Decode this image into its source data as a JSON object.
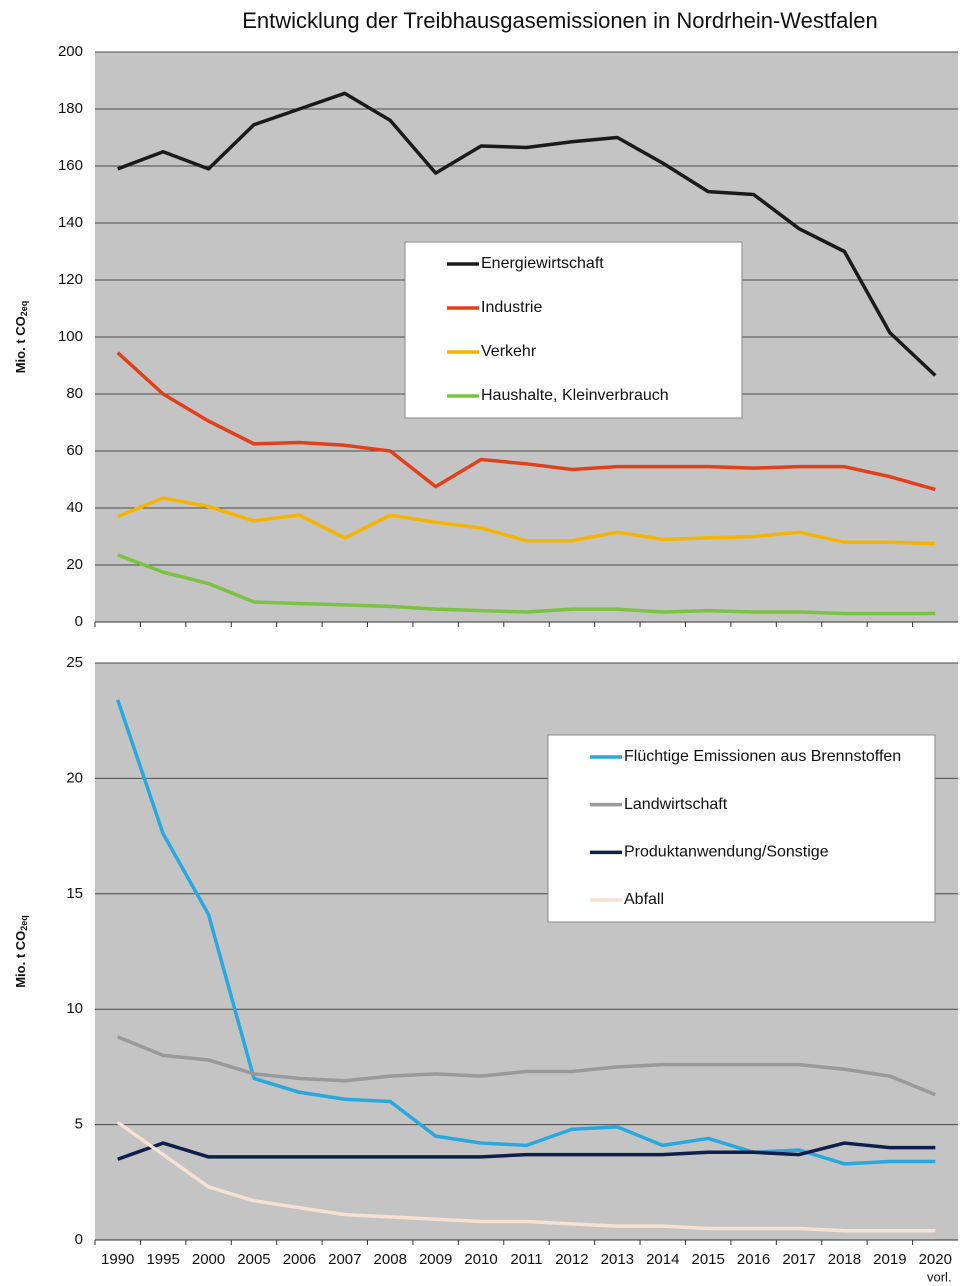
{
  "chart_data": [
    {
      "type": "line",
      "title": "Entwicklung der Treibhausgasemissionen in Nordrhein-Westfalen",
      "y_label": "Mio. t CO",
      "y_label_sub": "2eq",
      "categories": [
        null,
        null,
        null,
        null,
        null,
        null,
        null,
        null,
        null,
        null,
        null,
        null,
        null,
        null,
        null,
        null,
        null,
        null,
        null
      ],
      "ylim": [
        0,
        200
      ],
      "yticks": [
        0,
        20,
        40,
        60,
        80,
        100,
        120,
        140,
        160,
        180,
        200
      ],
      "grid": true,
      "series": [
        {
          "name": "Energiewirtschaft",
          "color": "#1a1a1a",
          "values": [
            159,
            165,
            159,
            174.5,
            180,
            185.5,
            176,
            157.5,
            167,
            166.5,
            168.5,
            170,
            161,
            151,
            150,
            138,
            130,
            101.5,
            86.5
          ]
        },
        {
          "name": "Industrie",
          "color": "#e0401a",
          "values": [
            94.5,
            80,
            70.5,
            62.5,
            63,
            62,
            60,
            47.5,
            57,
            55.5,
            53.5,
            54.5,
            54.5,
            54.5,
            54,
            54.5,
            54.5,
            51,
            46.5
          ]
        },
        {
          "name": "Verkehr",
          "color": "#f5b400",
          "values": [
            37,
            43.5,
            40.5,
            35.5,
            37.5,
            29.5,
            37.5,
            35,
            33,
            28.5,
            28.5,
            31.5,
            29,
            29.5,
            30,
            31.5,
            28,
            28,
            27.5
          ]
        },
        {
          "name": "Haushalte, Kleinverbrauch",
          "color": "#7cc242",
          "values": [
            23.5,
            17.5,
            13.5,
            7,
            6.5,
            6,
            5.5,
            4.5,
            4,
            3.5,
            4.5,
            4.5,
            3.5,
            4,
            3.5,
            3.5,
            3,
            3,
            3
          ]
        }
      ]
    },
    {
      "type": "line",
      "y_label": "Mio. t CO",
      "y_label_sub": "2eq",
      "x_note": "vorl.",
      "categories": [
        "1990",
        "1995",
        "2000",
        "2005",
        "2006",
        "2007",
        "2008",
        "2009",
        "2010",
        "2011",
        "2012",
        "2013",
        "2014",
        "2015",
        "2016",
        "2017",
        "2018",
        "2019",
        "2020"
      ],
      "ylim": [
        0,
        25
      ],
      "yticks": [
        0,
        5,
        10,
        15,
        20,
        25
      ],
      "grid": true,
      "series": [
        {
          "name": "Flüchtige Emissionen aus Brennstoffen",
          "color": "#29a8e0",
          "values": [
            23.4,
            17.6,
            14.1,
            7.0,
            6.4,
            6.1,
            6.0,
            4.5,
            4.2,
            4.1,
            4.8,
            4.9,
            4.1,
            4.4,
            3.8,
            3.9,
            3.3,
            3.4,
            3.4
          ]
        },
        {
          "name": "Landwirtschaft",
          "color": "#999999",
          "values": [
            8.8,
            8.0,
            7.8,
            7.2,
            7.0,
            6.9,
            7.1,
            7.2,
            7.1,
            7.3,
            7.3,
            7.5,
            7.6,
            7.6,
            7.6,
            7.6,
            7.4,
            7.1,
            6.3
          ]
        },
        {
          "name": "Produktanwendung/Sonstige",
          "color": "#0d1f4a",
          "values": [
            3.5,
            4.2,
            3.6,
            3.6,
            3.6,
            3.6,
            3.6,
            3.6,
            3.6,
            3.7,
            3.7,
            3.7,
            3.7,
            3.8,
            3.8,
            3.7,
            4.2,
            4.0,
            4.0
          ]
        },
        {
          "name": "Abfall",
          "color": "#f7e1d2",
          "values": [
            5.1,
            3.7,
            2.3,
            1.7,
            1.4,
            1.1,
            1.0,
            0.9,
            0.8,
            0.8,
            0.7,
            0.6,
            0.6,
            0.5,
            0.5,
            0.5,
            0.4,
            0.4,
            0.4
          ]
        }
      ]
    }
  ]
}
